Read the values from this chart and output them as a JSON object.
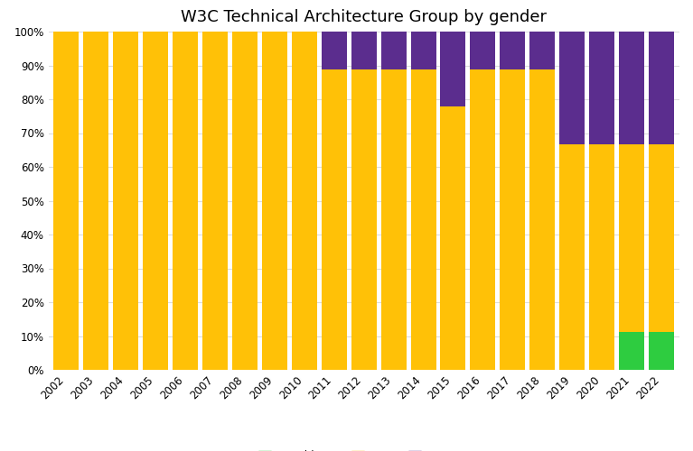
{
  "title": "W3C Technical Architecture Group by gender",
  "years": [
    2002,
    2003,
    2004,
    2005,
    2006,
    2007,
    2008,
    2009,
    2010,
    2011,
    2012,
    2013,
    2014,
    2015,
    2016,
    2017,
    2018,
    2019,
    2020,
    2021,
    2022
  ],
  "men": [
    1.0,
    1.0,
    1.0,
    1.0,
    1.0,
    1.0,
    1.0,
    1.0,
    1.0,
    0.889,
    0.889,
    0.889,
    0.889,
    0.778,
    0.889,
    0.889,
    0.889,
    0.667,
    0.667,
    0.556,
    0.556
  ],
  "women": [
    0.0,
    0.0,
    0.0,
    0.0,
    0.0,
    0.0,
    0.0,
    0.0,
    0.0,
    0.111,
    0.111,
    0.111,
    0.111,
    0.222,
    0.111,
    0.111,
    0.111,
    0.333,
    0.333,
    0.333,
    0.333
  ],
  "nonbinary": [
    0.0,
    0.0,
    0.0,
    0.0,
    0.0,
    0.0,
    0.0,
    0.0,
    0.0,
    0.0,
    0.0,
    0.0,
    0.0,
    0.0,
    0.0,
    0.0,
    0.0,
    0.0,
    0.0,
    0.111,
    0.111
  ],
  "color_men": "#FFC107",
  "color_women": "#5B2D8E",
  "color_nonbinary": "#2ECC40",
  "bar_width": 0.85,
  "background_color": "#FFFFFF",
  "grid_color": "#DDDDDD",
  "ylim": [
    0,
    1
  ],
  "yticks": [
    0.0,
    0.1,
    0.2,
    0.3,
    0.4,
    0.5,
    0.6,
    0.7,
    0.8,
    0.9,
    1.0
  ],
  "ytick_labels": [
    "0%",
    "10%",
    "20%",
    "30%",
    "40%",
    "50%",
    "60%",
    "70%",
    "80%",
    "90%",
    "100%"
  ],
  "title_fontsize": 13,
  "tick_fontsize": 8.5,
  "legend_fontsize": 8.5
}
